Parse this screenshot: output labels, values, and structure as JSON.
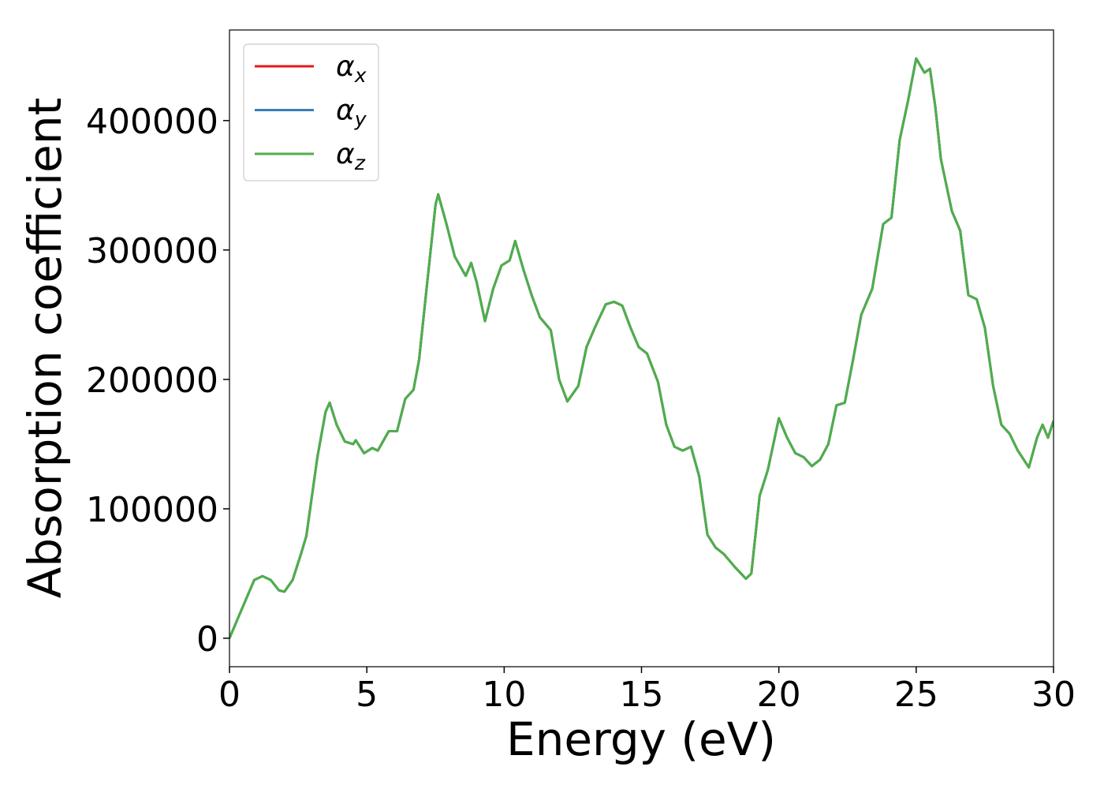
{
  "chart_data": {
    "type": "line",
    "x_label": "Energy (eV)",
    "y_label": "Absorption coefficient",
    "xlim": [
      0,
      30
    ],
    "ylim": [
      -22000,
      470000
    ],
    "xticks": [
      0,
      5,
      10,
      15,
      20,
      25,
      30
    ],
    "yticks": [
      0,
      100000,
      200000,
      300000,
      400000
    ],
    "legend": "upper left",
    "x": [
      0,
      0.3,
      0.6,
      0.9,
      1.2,
      1.5,
      1.8,
      2.0,
      2.3,
      2.6,
      2.8,
      3.2,
      3.5,
      3.65,
      3.9,
      4.2,
      4.5,
      4.6,
      4.9,
      5.2,
      5.4,
      5.8,
      6.1,
      6.4,
      6.7,
      6.9,
      7.2,
      7.5,
      7.6,
      7.9,
      8.2,
      8.6,
      8.8,
      9.0,
      9.3,
      9.6,
      9.9,
      10.2,
      10.4,
      10.7,
      11.0,
      11.3,
      11.7,
      12.0,
      12.3,
      12.7,
      13.0,
      13.3,
      13.7,
      14.0,
      14.3,
      14.6,
      14.9,
      15.2,
      15.6,
      15.9,
      16.2,
      16.5,
      16.8,
      17.1,
      17.4,
      17.7,
      18.0,
      18.4,
      18.8,
      19.0,
      19.3,
      19.6,
      20.0,
      20.3,
      20.6,
      20.9,
      21.2,
      21.5,
      21.8,
      22.1,
      22.4,
      22.7,
      23.0,
      23.4,
      23.8,
      24.1,
      24.4,
      24.7,
      25.0,
      25.3,
      25.5,
      25.7,
      25.9,
      26.3,
      26.6,
      26.9,
      27.2,
      27.5,
      27.8,
      28.1,
      28.4,
      28.7,
      29.1,
      29.4,
      29.6,
      29.8,
      30.0
    ],
    "series": [
      {
        "name": "αx",
        "color": "#e41a1c",
        "values": [
          0,
          15000,
          30000,
          45000,
          48000,
          45000,
          37000,
          36000,
          45000,
          65000,
          79000,
          140000,
          175000,
          182000,
          165000,
          152000,
          150000,
          153000,
          143000,
          147000,
          145000,
          160000,
          160000,
          185000,
          192000,
          215000,
          275000,
          335000,
          343000,
          320000,
          295000,
          280000,
          290000,
          275000,
          245000,
          270000,
          288000,
          292000,
          307000,
          285000,
          265000,
          248000,
          238000,
          200000,
          183000,
          195000,
          225000,
          240000,
          258000,
          260000,
          257000,
          240000,
          225000,
          220000,
          198000,
          165000,
          148000,
          145000,
          148000,
          125000,
          80000,
          70000,
          65000,
          55000,
          46000,
          50000,
          110000,
          130000,
          170000,
          155000,
          143000,
          140000,
          133000,
          138000,
          150000,
          180000,
          182000,
          215000,
          250000,
          270000,
          320000,
          325000,
          385000,
          415000,
          448000,
          437000,
          440000,
          410000,
          370000,
          330000,
          315000,
          265000,
          262000,
          240000,
          195000,
          165000,
          158000,
          145000,
          132000,
          155000,
          165000,
          155000,
          168000
        ]
      },
      {
        "name": "αy",
        "color": "#377eb8",
        "values": [
          0,
          15000,
          30000,
          45000,
          48000,
          45000,
          37000,
          36000,
          45000,
          65000,
          79000,
          140000,
          175000,
          182000,
          165000,
          152000,
          150000,
          153000,
          143000,
          147000,
          145000,
          160000,
          160000,
          185000,
          192000,
          215000,
          275000,
          335000,
          343000,
          320000,
          295000,
          280000,
          290000,
          275000,
          245000,
          270000,
          288000,
          292000,
          307000,
          285000,
          265000,
          248000,
          238000,
          200000,
          183000,
          195000,
          225000,
          240000,
          258000,
          260000,
          257000,
          240000,
          225000,
          220000,
          198000,
          165000,
          148000,
          145000,
          148000,
          125000,
          80000,
          70000,
          65000,
          55000,
          46000,
          50000,
          110000,
          130000,
          170000,
          155000,
          143000,
          140000,
          133000,
          138000,
          150000,
          180000,
          182000,
          215000,
          250000,
          270000,
          320000,
          325000,
          385000,
          415000,
          448000,
          437000,
          440000,
          410000,
          370000,
          330000,
          315000,
          265000,
          262000,
          240000,
          195000,
          165000,
          158000,
          145000,
          132000,
          155000,
          165000,
          155000,
          168000
        ]
      },
      {
        "name": "αz",
        "color": "#4daf4a",
        "values": [
          0,
          15000,
          30000,
          45000,
          48000,
          45000,
          37000,
          36000,
          45000,
          65000,
          79000,
          140000,
          175000,
          182000,
          165000,
          152000,
          150000,
          153000,
          143000,
          147000,
          145000,
          160000,
          160000,
          185000,
          192000,
          215000,
          275000,
          335000,
          343000,
          320000,
          295000,
          280000,
          290000,
          275000,
          245000,
          270000,
          288000,
          292000,
          307000,
          285000,
          265000,
          248000,
          238000,
          200000,
          183000,
          195000,
          225000,
          240000,
          258000,
          260000,
          257000,
          240000,
          225000,
          220000,
          198000,
          165000,
          148000,
          145000,
          148000,
          125000,
          80000,
          70000,
          65000,
          55000,
          46000,
          50000,
          110000,
          130000,
          170000,
          155000,
          143000,
          140000,
          133000,
          138000,
          150000,
          180000,
          182000,
          215000,
          250000,
          270000,
          320000,
          325000,
          385000,
          415000,
          448000,
          437000,
          440000,
          410000,
          370000,
          330000,
          315000,
          265000,
          262000,
          240000,
          195000,
          165000,
          158000,
          145000,
          132000,
          155000,
          165000,
          155000,
          168000
        ]
      }
    ]
  }
}
